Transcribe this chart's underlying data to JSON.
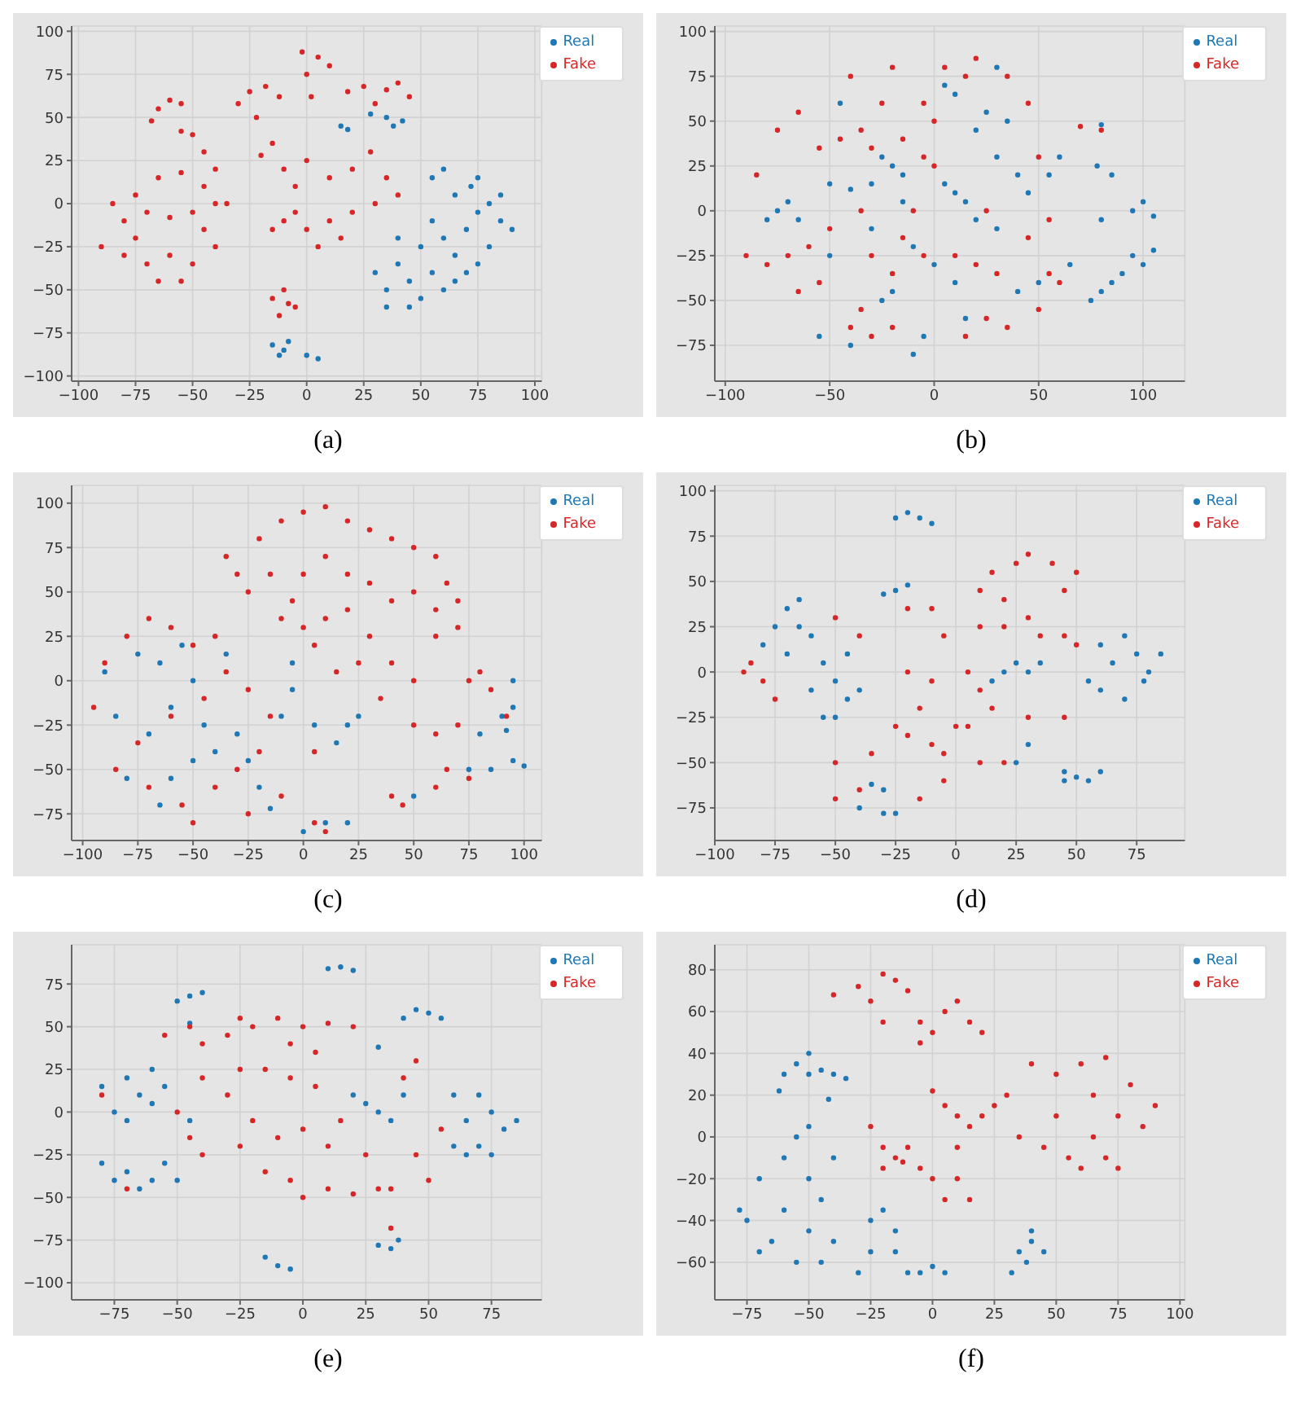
{
  "chart_data": [
    {
      "type": "scatter",
      "xlabel": "(a)",
      "xlim": [
        -103,
        103
      ],
      "ylim": [
        -103,
        103
      ],
      "xticks": [
        -100,
        -75,
        -50,
        -25,
        0,
        25,
        50,
        75,
        100
      ],
      "yticks": [
        -100,
        -75,
        -50,
        -25,
        0,
        25,
        50,
        75,
        100
      ],
      "grid": true,
      "legend": "top right",
      "marker": "circle",
      "series": [
        {
          "name": "Real",
          "color": "#1f77b4",
          "x": [
            15,
            18,
            28,
            35,
            42,
            38,
            -15,
            -10,
            -8,
            -12,
            0,
            5,
            30,
            35,
            40,
            45,
            50,
            45,
            55,
            60,
            65,
            60,
            55,
            70,
            75,
            80,
            72,
            65,
            75,
            85,
            90,
            80,
            70,
            55,
            60,
            50,
            40,
            85,
            65,
            75,
            35
          ],
          "values": [
            45,
            43,
            52,
            50,
            48,
            45,
            -82,
            -85,
            -80,
            -88,
            -88,
            -90,
            -40,
            -50,
            -35,
            -45,
            -55,
            -60,
            -40,
            -50,
            -30,
            -20,
            -10,
            -15,
            -5,
            0,
            10,
            5,
            15,
            -10,
            -15,
            -25,
            -40,
            15,
            20,
            -25,
            -20,
            5,
            -45,
            -35,
            -60
          ]
        },
        {
          "name": "Fake",
          "color": "#d62728",
          "x": [
            -65,
            -60,
            -55,
            -68,
            -55,
            -50,
            -45,
            -40,
            -85,
            -75,
            -65,
            -55,
            -45,
            -40,
            -50,
            -60,
            -70,
            -80,
            -90,
            -80,
            -70,
            -60,
            -50,
            -40,
            -65,
            -55,
            -75,
            -45,
            -35,
            -30,
            -25,
            -18,
            -12,
            -22,
            -2,
            5,
            10,
            0,
            2,
            18,
            25,
            35,
            45,
            40,
            30,
            -20,
            -15,
            -10,
            -5,
            0,
            10,
            20,
            28,
            35,
            30,
            20,
            10,
            0,
            -10,
            -15,
            5,
            15,
            -5,
            40,
            -15,
            -10,
            -5,
            -12,
            -8
          ],
          "values": [
            55,
            60,
            58,
            48,
            42,
            40,
            30,
            20,
            0,
            5,
            15,
            18,
            10,
            0,
            -5,
            -8,
            -5,
            -10,
            -25,
            -30,
            -35,
            -30,
            -35,
            -25,
            -45,
            -45,
            -20,
            -15,
            0,
            58,
            65,
            68,
            62,
            50,
            88,
            85,
            80,
            75,
            62,
            65,
            68,
            66,
            62,
            70,
            58,
            28,
            35,
            20,
            10,
            25,
            15,
            20,
            30,
            15,
            0,
            -5,
            -10,
            -15,
            -10,
            -15,
            -25,
            -20,
            -5,
            5,
            -55,
            -50,
            -60,
            -65,
            -58
          ]
        }
      ]
    },
    {
      "type": "scatter",
      "xlabel": "(b)",
      "xlim": [
        -105,
        120
      ],
      "ylim": [
        -95,
        103
      ],
      "xticks": [
        -100,
        -50,
        0,
        50,
        100
      ],
      "yticks": [
        -75,
        -50,
        -25,
        0,
        25,
        50,
        75,
        100
      ],
      "grid": true,
      "legend": "top right",
      "marker": "circle",
      "series": [
        {
          "name": "Real",
          "color": "#1f77b4",
          "x": [
            -75,
            -70,
            -65,
            -80,
            -50,
            -40,
            -30,
            -20,
            -15,
            -25,
            10,
            15,
            5,
            20,
            30,
            25,
            35,
            20,
            30,
            40,
            10,
            5,
            45,
            55,
            50,
            40,
            -25,
            -20,
            -10,
            -5,
            0,
            10,
            -40,
            -55,
            -50,
            60,
            65,
            75,
            80,
            85,
            80,
            78,
            85,
            80,
            95,
            100,
            105,
            95,
            100,
            105,
            90,
            -45,
            -30,
            -10,
            15,
            30,
            -15
          ],
          "values": [
            0,
            5,
            -5,
            -5,
            15,
            12,
            15,
            25,
            20,
            30,
            10,
            5,
            15,
            -5,
            -10,
            55,
            50,
            45,
            30,
            20,
            65,
            70,
            10,
            20,
            -40,
            -45,
            -50,
            -45,
            -80,
            -70,
            -30,
            -40,
            -75,
            -70,
            -25,
            30,
            -30,
            -50,
            -45,
            -40,
            48,
            25,
            20,
            -5,
            0,
            5,
            -3,
            -25,
            -30,
            -22,
            -35,
            60,
            -10,
            -20,
            -60,
            80,
            5
          ]
        },
        {
          "name": "Fake",
          "color": "#d62728",
          "x": [
            -70,
            -60,
            -80,
            -55,
            -65,
            -50,
            -75,
            -65,
            -55,
            -45,
            -35,
            -30,
            -25,
            -40,
            -20,
            -5,
            0,
            5,
            15,
            20,
            35,
            45,
            -5,
            0,
            -15,
            -5,
            -20,
            -35,
            -30,
            -40,
            -20,
            10,
            20,
            30,
            25,
            15,
            35,
            50,
            55,
            60,
            45,
            50,
            55,
            -10,
            -30,
            -15,
            70,
            80,
            -85,
            -90,
            25,
            -35
          ],
          "values": [
            -25,
            -20,
            -30,
            -40,
            -45,
            -10,
            45,
            55,
            35,
            40,
            45,
            35,
            60,
            75,
            80,
            60,
            50,
            80,
            75,
            85,
            75,
            60,
            30,
            25,
            -15,
            -25,
            -35,
            -55,
            -70,
            -65,
            -65,
            -25,
            -30,
            -35,
            -60,
            -70,
            -65,
            -55,
            -35,
            -40,
            -15,
            30,
            -5,
            0,
            -25,
            40,
            47,
            45,
            20,
            -25,
            0,
            0
          ]
        }
      ]
    },
    {
      "type": "scatter",
      "xlabel": "(c)",
      "xlim": [
        -105,
        108
      ],
      "ylim": [
        -90,
        110
      ],
      "xticks": [
        -100,
        -75,
        -50,
        -25,
        0,
        25,
        50,
        75,
        100
      ],
      "yticks": [
        -75,
        -50,
        -25,
        0,
        25,
        50,
        75,
        100
      ],
      "grid": true,
      "legend": "top right",
      "marker": "circle",
      "series": [
        {
          "name": "Real",
          "color": "#1f77b4",
          "x": [
            -90,
            -75,
            -65,
            -55,
            -50,
            -60,
            -70,
            -80,
            -60,
            -50,
            -40,
            -30,
            -25,
            -20,
            -15,
            -10,
            -5,
            -5,
            5,
            15,
            20,
            25,
            -45,
            -35,
            0,
            10,
            20,
            90,
            95,
            95,
            92,
            75,
            85,
            95,
            100,
            80,
            50,
            -85,
            -65
          ],
          "values": [
            5,
            15,
            10,
            20,
            0,
            -15,
            -30,
            -55,
            -55,
            -45,
            -40,
            -30,
            -45,
            -60,
            -72,
            -20,
            -5,
            10,
            -25,
            -35,
            -25,
            -20,
            -25,
            15,
            -85,
            -80,
            -80,
            -20,
            -15,
            0,
            -28,
            -50,
            -50,
            -45,
            -48,
            -30,
            -65,
            -20,
            -70
          ]
        },
        {
          "name": "Fake",
          "color": "#d62728",
          "x": [
            -35,
            -30,
            -20,
            -10,
            0,
            10,
            20,
            30,
            40,
            50,
            60,
            65,
            70,
            60,
            50,
            40,
            30,
            20,
            10,
            0,
            -5,
            -10,
            0,
            10,
            20,
            30,
            25,
            15,
            5,
            40,
            50,
            60,
            70,
            -15,
            -25,
            35,
            -95,
            -90,
            -80,
            -70,
            -60,
            -50,
            -40,
            -35,
            -45,
            -60,
            -75,
            -85,
            -70,
            -55,
            -40,
            -30,
            -20,
            -15,
            -25,
            -10,
            -25,
            5,
            -50,
            75,
            85,
            80,
            50,
            60,
            70,
            65,
            60,
            75,
            40,
            45,
            5,
            10,
            92
          ],
          "values": [
            70,
            60,
            80,
            90,
            95,
            98,
            90,
            85,
            80,
            75,
            70,
            55,
            45,
            40,
            50,
            45,
            55,
            60,
            70,
            60,
            45,
            35,
            30,
            35,
            40,
            25,
            10,
            5,
            20,
            10,
            0,
            25,
            30,
            60,
            50,
            -10,
            -15,
            10,
            25,
            35,
            30,
            20,
            25,
            5,
            -10,
            -20,
            -35,
            -50,
            -60,
            -70,
            -60,
            -50,
            -40,
            -20,
            -5,
            -65,
            -75,
            -40,
            -80,
            0,
            -5,
            5,
            -25,
            -30,
            -25,
            -50,
            -60,
            -55,
            -65,
            -70,
            -80,
            -85,
            -20
          ]
        }
      ]
    },
    {
      "type": "scatter",
      "xlabel": "(d)",
      "xlim": [
        -100,
        95
      ],
      "ylim": [
        -93,
        103
      ],
      "xticks": [
        -100,
        -75,
        -50,
        -25,
        0,
        25,
        50,
        75
      ],
      "yticks": [
        -75,
        -50,
        -25,
        0,
        25,
        50,
        75,
        100
      ],
      "grid": true,
      "legend": "top right",
      "marker": "circle",
      "series": [
        {
          "name": "Real",
          "color": "#1f77b4",
          "x": [
            -20,
            -15,
            -25,
            -10,
            -25,
            -20,
            -30,
            -75,
            -70,
            -65,
            -80,
            -60,
            -55,
            -50,
            -45,
            -55,
            -60,
            -70,
            -45,
            -40,
            -65,
            -50,
            70,
            75,
            80,
            65,
            60,
            70,
            55,
            85,
            78,
            60,
            45,
            50,
            55,
            60,
            45,
            30,
            25,
            30,
            20,
            15,
            35,
            -35,
            -30,
            -40,
            -30,
            -25,
            25
          ],
          "values": [
            88,
            85,
            85,
            82,
            45,
            48,
            43,
            25,
            35,
            40,
            15,
            20,
            5,
            -5,
            -15,
            -25,
            -10,
            10,
            10,
            -10,
            25,
            -25,
            20,
            10,
            0,
            5,
            -10,
            -15,
            -5,
            10,
            -5,
            15,
            -55,
            -58,
            -60,
            -55,
            -60,
            -40,
            -50,
            0,
            0,
            -5,
            5,
            -62,
            -65,
            -75,
            -78,
            -78,
            5
          ]
        },
        {
          "name": "Fake",
          "color": "#d62728",
          "x": [
            -88,
            -80,
            -75,
            -85,
            -50,
            -40,
            -20,
            -10,
            -5,
            -20,
            -10,
            -15,
            -25,
            -20,
            -10,
            -5,
            0,
            5,
            10,
            15,
            10,
            20,
            -50,
            -35,
            -40,
            -15,
            -5,
            10,
            15,
            20,
            25,
            30,
            40,
            50,
            45,
            30,
            20,
            10,
            35,
            45,
            50,
            30,
            45,
            5,
            -50
          ],
          "values": [
            0,
            -5,
            -15,
            5,
            30,
            20,
            35,
            35,
            20,
            0,
            -5,
            -20,
            -30,
            -35,
            -40,
            -45,
            -30,
            -30,
            -10,
            -20,
            -50,
            -50,
            -50,
            -45,
            -65,
            -70,
            -60,
            45,
            55,
            40,
            60,
            65,
            60,
            55,
            45,
            30,
            25,
            25,
            20,
            20,
            15,
            -25,
            -25,
            0,
            -70
          ]
        }
      ]
    },
    {
      "type": "scatter",
      "xlabel": "(e)",
      "xlim": [
        -92,
        95
      ],
      "ylim": [
        -110,
        98
      ],
      "xticks": [
        -75,
        -50,
        -25,
        0,
        25,
        50,
        75
      ],
      "yticks": [
        -100,
        -75,
        -50,
        -25,
        0,
        25,
        50,
        75
      ],
      "grid": true,
      "legend": "top right",
      "marker": "circle",
      "series": [
        {
          "name": "Real",
          "color": "#1f77b4",
          "x": [
            15,
            20,
            10,
            -45,
            -40,
            -50,
            -45,
            40,
            50,
            55,
            45,
            30,
            -80,
            -70,
            -60,
            -55,
            -65,
            -75,
            -70,
            -60,
            -80,
            -70,
            -60,
            -55,
            -65,
            -75,
            -50,
            -10,
            -5,
            -15,
            30,
            35,
            38,
            25,
            30,
            35,
            40,
            20,
            60,
            65,
            70,
            75,
            80,
            70,
            85,
            65,
            60,
            75,
            -45
          ],
          "values": [
            85,
            83,
            84,
            68,
            70,
            65,
            52,
            55,
            58,
            55,
            60,
            38,
            15,
            20,
            25,
            15,
            10,
            0,
            -5,
            5,
            -30,
            -35,
            -40,
            -30,
            -45,
            -40,
            -40,
            -90,
            -92,
            -85,
            -78,
            -80,
            -75,
            5,
            0,
            -5,
            10,
            10,
            10,
            -5,
            -20,
            0,
            -10,
            10,
            -5,
            -25,
            -20,
            -25,
            -5
          ]
        },
        {
          "name": "Fake",
          "color": "#d62728",
          "x": [
            -55,
            -45,
            -40,
            -30,
            -25,
            -20,
            -10,
            0,
            10,
            20,
            -5,
            5,
            -25,
            -15,
            -5,
            5,
            -30,
            -20,
            -10,
            0,
            10,
            -25,
            -15,
            -5,
            0,
            10,
            20,
            30,
            35,
            25,
            15,
            45,
            45,
            50,
            55,
            40,
            -45,
            -40,
            -50,
            -40,
            -80,
            35,
            -70
          ],
          "values": [
            45,
            50,
            40,
            45,
            55,
            50,
            55,
            50,
            52,
            50,
            40,
            35,
            25,
            25,
            20,
            15,
            10,
            -5,
            -15,
            -10,
            -20,
            -20,
            -35,
            -40,
            -50,
            -45,
            -48,
            -45,
            -45,
            -25,
            -5,
            30,
            -25,
            -40,
            -10,
            20,
            -15,
            -25,
            0,
            20,
            10,
            -68,
            -45
          ]
        }
      ]
    },
    {
      "type": "scatter",
      "xlabel": "(f)",
      "xlim": [
        -88,
        102
      ],
      "ylim": [
        -78,
        92
      ],
      "xticks": [
        -75,
        -50,
        -25,
        0,
        25,
        50,
        75,
        100
      ],
      "yticks": [
        -60,
        -40,
        -20,
        0,
        20,
        40,
        60,
        80
      ],
      "grid": true,
      "legend": "top right",
      "marker": "circle",
      "series": [
        {
          "name": "Real",
          "color": "#1f77b4",
          "x": [
            -60,
            -55,
            -50,
            -45,
            -40,
            -35,
            -50,
            -62,
            -55,
            -50,
            -60,
            -70,
            -75,
            -65,
            -55,
            -50,
            -45,
            -40,
            -50,
            -60,
            -45,
            -40,
            -70,
            -78,
            -25,
            -20,
            -25,
            -15,
            -10,
            -5,
            0,
            5,
            -15,
            35,
            40,
            38,
            45,
            40,
            32,
            -42,
            -30
          ],
          "values": [
            30,
            35,
            30,
            32,
            30,
            28,
            40,
            22,
            0,
            5,
            -10,
            -20,
            -40,
            -50,
            -60,
            -45,
            -30,
            -50,
            -20,
            -35,
            -60,
            -10,
            -55,
            -35,
            -40,
            -35,
            -55,
            -55,
            -65,
            -65,
            -62,
            -65,
            -45,
            -55,
            -50,
            -60,
            -55,
            -45,
            -65,
            18,
            -65
          ]
        },
        {
          "name": "Fake",
          "color": "#d62728",
          "x": [
            -40,
            -30,
            -20,
            -15,
            -25,
            -10,
            -20,
            -5,
            0,
            5,
            10,
            15,
            20,
            -5,
            0,
            5,
            10,
            15,
            20,
            25,
            10,
            -25,
            -20,
            -15,
            -10,
            -5,
            -20,
            0,
            10,
            15,
            5,
            -12,
            30,
            40,
            50,
            60,
            70,
            80,
            90,
            85,
            75,
            65,
            55,
            45,
            35,
            60,
            70,
            50,
            65,
            75
          ],
          "values": [
            68,
            72,
            78,
            75,
            65,
            70,
            55,
            55,
            50,
            60,
            65,
            55,
            50,
            45,
            22,
            15,
            10,
            5,
            10,
            15,
            -5,
            5,
            -5,
            -10,
            -5,
            -15,
            -15,
            -20,
            -20,
            -30,
            -30,
            -12,
            20,
            35,
            30,
            35,
            38,
            25,
            15,
            5,
            10,
            0,
            -10,
            -5,
            0,
            -15,
            -10,
            10,
            20,
            -15
          ]
        }
      ]
    }
  ]
}
